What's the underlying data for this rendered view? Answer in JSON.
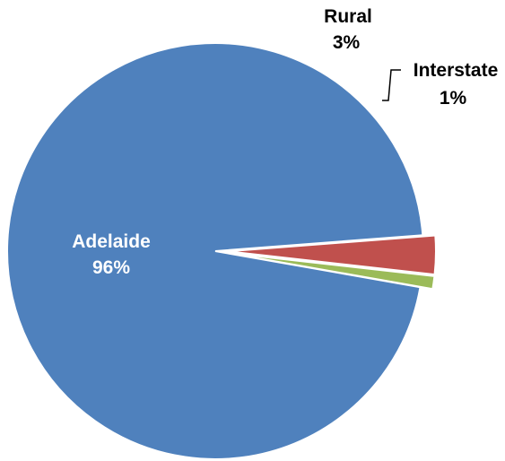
{
  "chart_data": {
    "type": "pie",
    "title": "",
    "slices": [
      {
        "label": "Adelaide",
        "value": 96,
        "value_label": "96%",
        "color": "#4f81bd",
        "exploded": false
      },
      {
        "label": "Rural",
        "value": 3,
        "value_label": "3%",
        "color": "#c0504d",
        "exploded": true
      },
      {
        "label": "Interstate",
        "value": 1,
        "value_label": "1%",
        "color": "#9bbb59",
        "exploded": true
      }
    ],
    "legend": "none",
    "label_colors": {
      "inside": "#ffffff",
      "outside": "#000000"
    }
  }
}
